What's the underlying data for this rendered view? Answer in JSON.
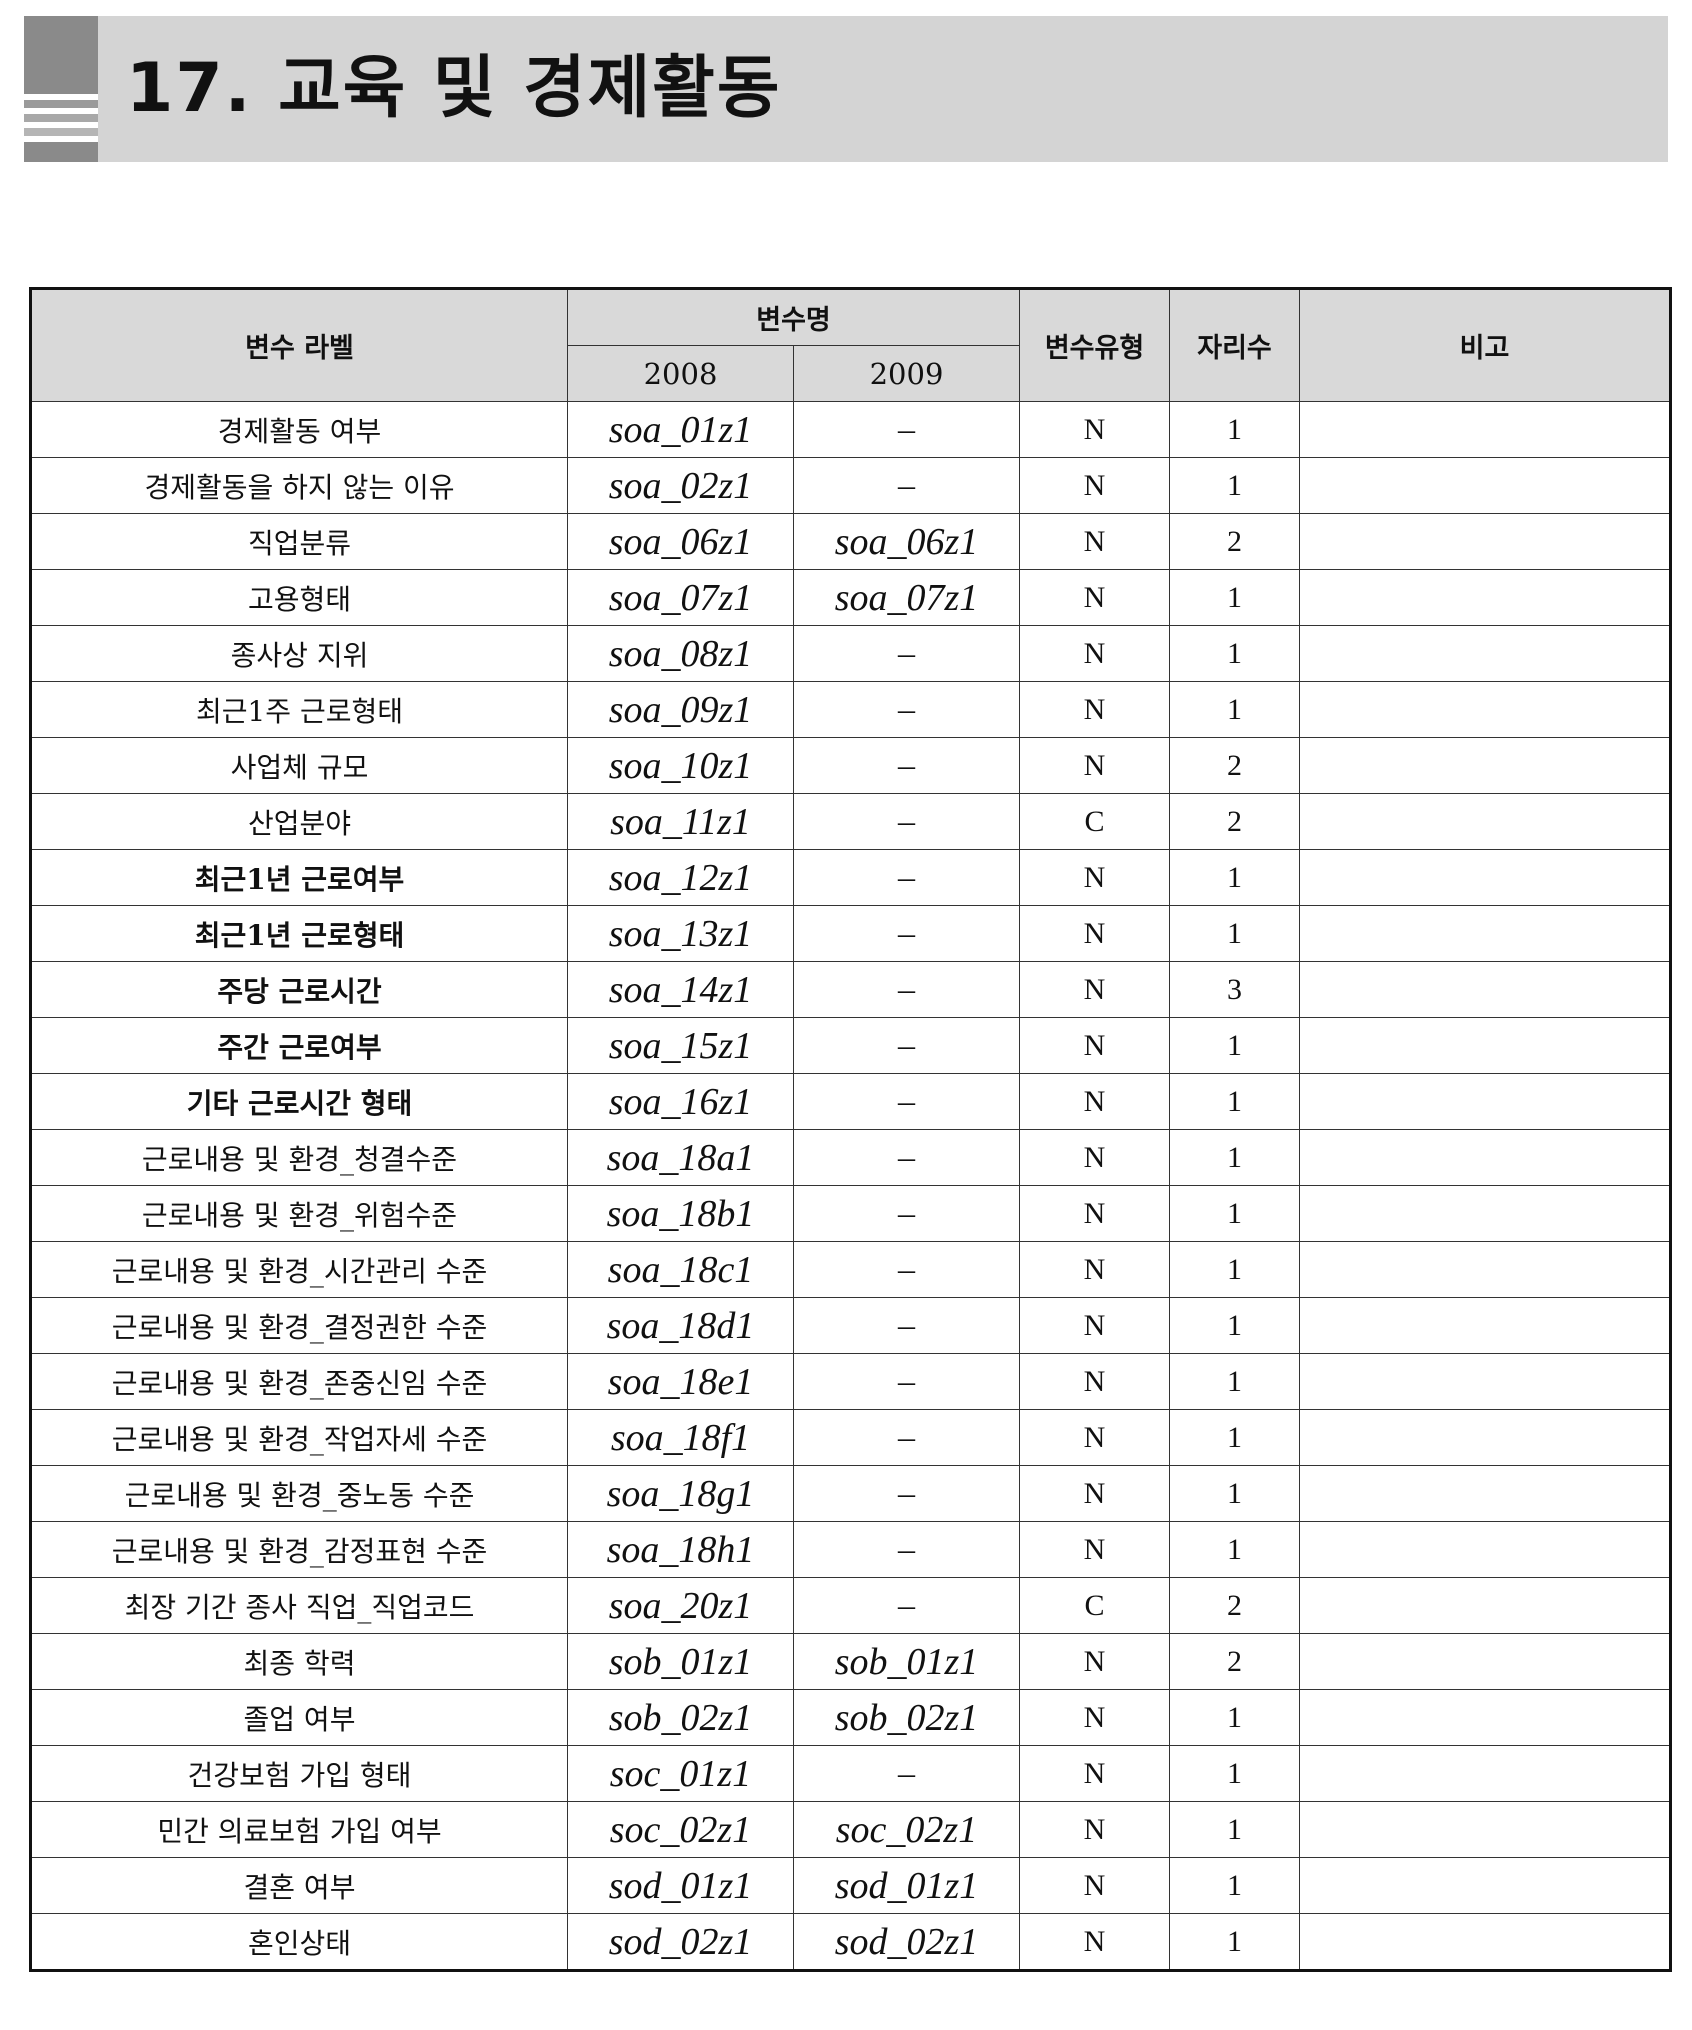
{
  "section": {
    "title": "17.  교육 및 경제활동"
  },
  "table": {
    "headers": {
      "label": "변수 라벨",
      "varname": "변수명",
      "year1": "2008",
      "year2": "2009",
      "type": "변수유형",
      "digits": "자리수",
      "note": "비고"
    },
    "rows": [
      {
        "label": "경제활동 여부",
        "bold": false,
        "v2008": "soa_01z1",
        "v2009": "–",
        "type": "N",
        "digits": "1",
        "note": ""
      },
      {
        "label": "경제활동을 하지 않는 이유",
        "bold": false,
        "v2008": "soa_02z1",
        "v2009": "–",
        "type": "N",
        "digits": "1",
        "note": ""
      },
      {
        "label": "직업분류",
        "bold": false,
        "v2008": "soa_06z1",
        "v2009": "soa_06z1",
        "type": "N",
        "digits": "2",
        "note": ""
      },
      {
        "label": "고용형태",
        "bold": false,
        "v2008": "soa_07z1",
        "v2009": "soa_07z1",
        "type": "N",
        "digits": "1",
        "note": ""
      },
      {
        "label": "종사상 지위",
        "bold": false,
        "v2008": "soa_08z1",
        "v2009": "–",
        "type": "N",
        "digits": "1",
        "note": ""
      },
      {
        "label": "최근1주 근로형태",
        "bold": false,
        "v2008": "soa_09z1",
        "v2009": "–",
        "type": "N",
        "digits": "1",
        "note": ""
      },
      {
        "label": "사업체 규모",
        "bold": false,
        "v2008": "soa_10z1",
        "v2009": "–",
        "type": "N",
        "digits": "2",
        "note": ""
      },
      {
        "label": "산업분야",
        "bold": false,
        "v2008": "soa_11z1",
        "v2009": "–",
        "type": "C",
        "digits": "2",
        "note": ""
      },
      {
        "label": "최근1년 근로여부",
        "bold": true,
        "v2008": "soa_12z1",
        "v2009": "–",
        "type": "N",
        "digits": "1",
        "note": ""
      },
      {
        "label": "최근1년 근로형태",
        "bold": true,
        "v2008": "soa_13z1",
        "v2009": "–",
        "type": "N",
        "digits": "1",
        "note": ""
      },
      {
        "label": "주당 근로시간",
        "bold": true,
        "v2008": "soa_14z1",
        "v2009": "–",
        "type": "N",
        "digits": "3",
        "note": ""
      },
      {
        "label": "주간 근로여부",
        "bold": true,
        "v2008": "soa_15z1",
        "v2009": "–",
        "type": "N",
        "digits": "1",
        "note": ""
      },
      {
        "label": "기타 근로시간 형태",
        "bold": true,
        "v2008": "soa_16z1",
        "v2009": "–",
        "type": "N",
        "digits": "1",
        "note": ""
      },
      {
        "label": "근로내용 및 환경_청결수준",
        "bold": false,
        "v2008": "soa_18a1",
        "v2009": "–",
        "type": "N",
        "digits": "1",
        "note": ""
      },
      {
        "label": "근로내용 및 환경_위험수준",
        "bold": false,
        "v2008": "soa_18b1",
        "v2009": "–",
        "type": "N",
        "digits": "1",
        "note": ""
      },
      {
        "label": "근로내용 및 환경_시간관리 수준",
        "bold": false,
        "v2008": "soa_18c1",
        "v2009": "–",
        "type": "N",
        "digits": "1",
        "note": ""
      },
      {
        "label": "근로내용 및 환경_결정권한 수준",
        "bold": false,
        "v2008": "soa_18d1",
        "v2009": "–",
        "type": "N",
        "digits": "1",
        "note": ""
      },
      {
        "label": "근로내용 및 환경_존중신임 수준",
        "bold": false,
        "v2008": "soa_18e1",
        "v2009": "–",
        "type": "N",
        "digits": "1",
        "note": ""
      },
      {
        "label": "근로내용 및 환경_작업자세 수준",
        "bold": false,
        "v2008": "soa_18f1",
        "v2009": "–",
        "type": "N",
        "digits": "1",
        "note": ""
      },
      {
        "label": "근로내용 및 환경_중노동 수준",
        "bold": false,
        "v2008": "soa_18g1",
        "v2009": "–",
        "type": "N",
        "digits": "1",
        "note": ""
      },
      {
        "label": "근로내용 및 환경_감정표현 수준",
        "bold": false,
        "v2008": "soa_18h1",
        "v2009": "–",
        "type": "N",
        "digits": "1",
        "note": ""
      },
      {
        "label": "최장 기간 종사 직업_직업코드",
        "bold": false,
        "v2008": "soa_20z1",
        "v2009": "–",
        "type": "C",
        "digits": "2",
        "note": ""
      },
      {
        "label": "최종 학력",
        "bold": false,
        "v2008": "sob_01z1",
        "v2009": "sob_01z1",
        "type": "N",
        "digits": "2",
        "note": ""
      },
      {
        "label": "졸업 여부",
        "bold": false,
        "v2008": "sob_02z1",
        "v2009": "sob_02z1",
        "type": "N",
        "digits": "1",
        "note": ""
      },
      {
        "label": "건강보험 가입 형태",
        "bold": false,
        "v2008": "soc_01z1",
        "v2009": "–",
        "type": "N",
        "digits": "1",
        "note": ""
      },
      {
        "label": "민간 의료보험 가입 여부",
        "bold": false,
        "v2008": "soc_02z1",
        "v2009": "soc_02z1",
        "type": "N",
        "digits": "1",
        "note": ""
      },
      {
        "label": "결혼 여부",
        "bold": false,
        "v2008": "sod_01z1",
        "v2009": "sod_01z1",
        "type": "N",
        "digits": "1",
        "note": ""
      },
      {
        "label": "혼인상태",
        "bold": false,
        "v2008": "sod_02z1",
        "v2009": "sod_02z1",
        "type": "N",
        "digits": "1",
        "note": ""
      }
    ]
  }
}
